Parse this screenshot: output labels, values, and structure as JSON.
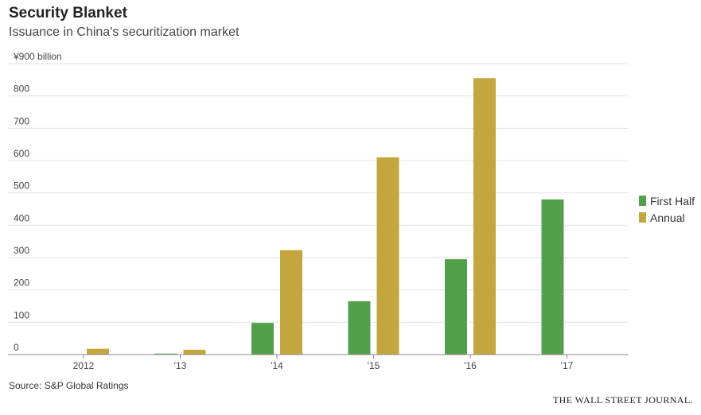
{
  "title": "Security Blanket",
  "subtitle": "Issuance in China's securitization market",
  "source": "Source: S&P Global Ratings",
  "brand": "THE WALL STREET JOURNAL.",
  "colors": {
    "first_half": "#53a04a",
    "annual": "#c3a73e",
    "grid": "#e2e2e2",
    "axis": "#888888"
  },
  "chart_data": {
    "type": "bar",
    "title": "Security Blanket",
    "subtitle": "Issuance in China's securitization market",
    "unit_label": "¥900 billion",
    "ylabel": "",
    "xlabel": "",
    "ylim": [
      0,
      900
    ],
    "yticks": [
      0,
      100,
      200,
      300,
      400,
      500,
      600,
      700,
      800,
      900
    ],
    "ytick_labels": [
      "0",
      "100",
      "200",
      "300",
      "400",
      "500",
      "600",
      "700",
      "800",
      "¥900 billion"
    ],
    "categories": [
      "2012",
      "'13",
      "'14",
      "'15",
      "'16",
      "'17"
    ],
    "series": [
      {
        "name": "First Half",
        "values": [
          0,
          3,
          98,
          165,
          295,
          480
        ]
      },
      {
        "name": "Annual",
        "values": [
          18,
          15,
          323,
          610,
          855,
          null
        ]
      }
    ],
    "legend": "right",
    "grid": true
  }
}
